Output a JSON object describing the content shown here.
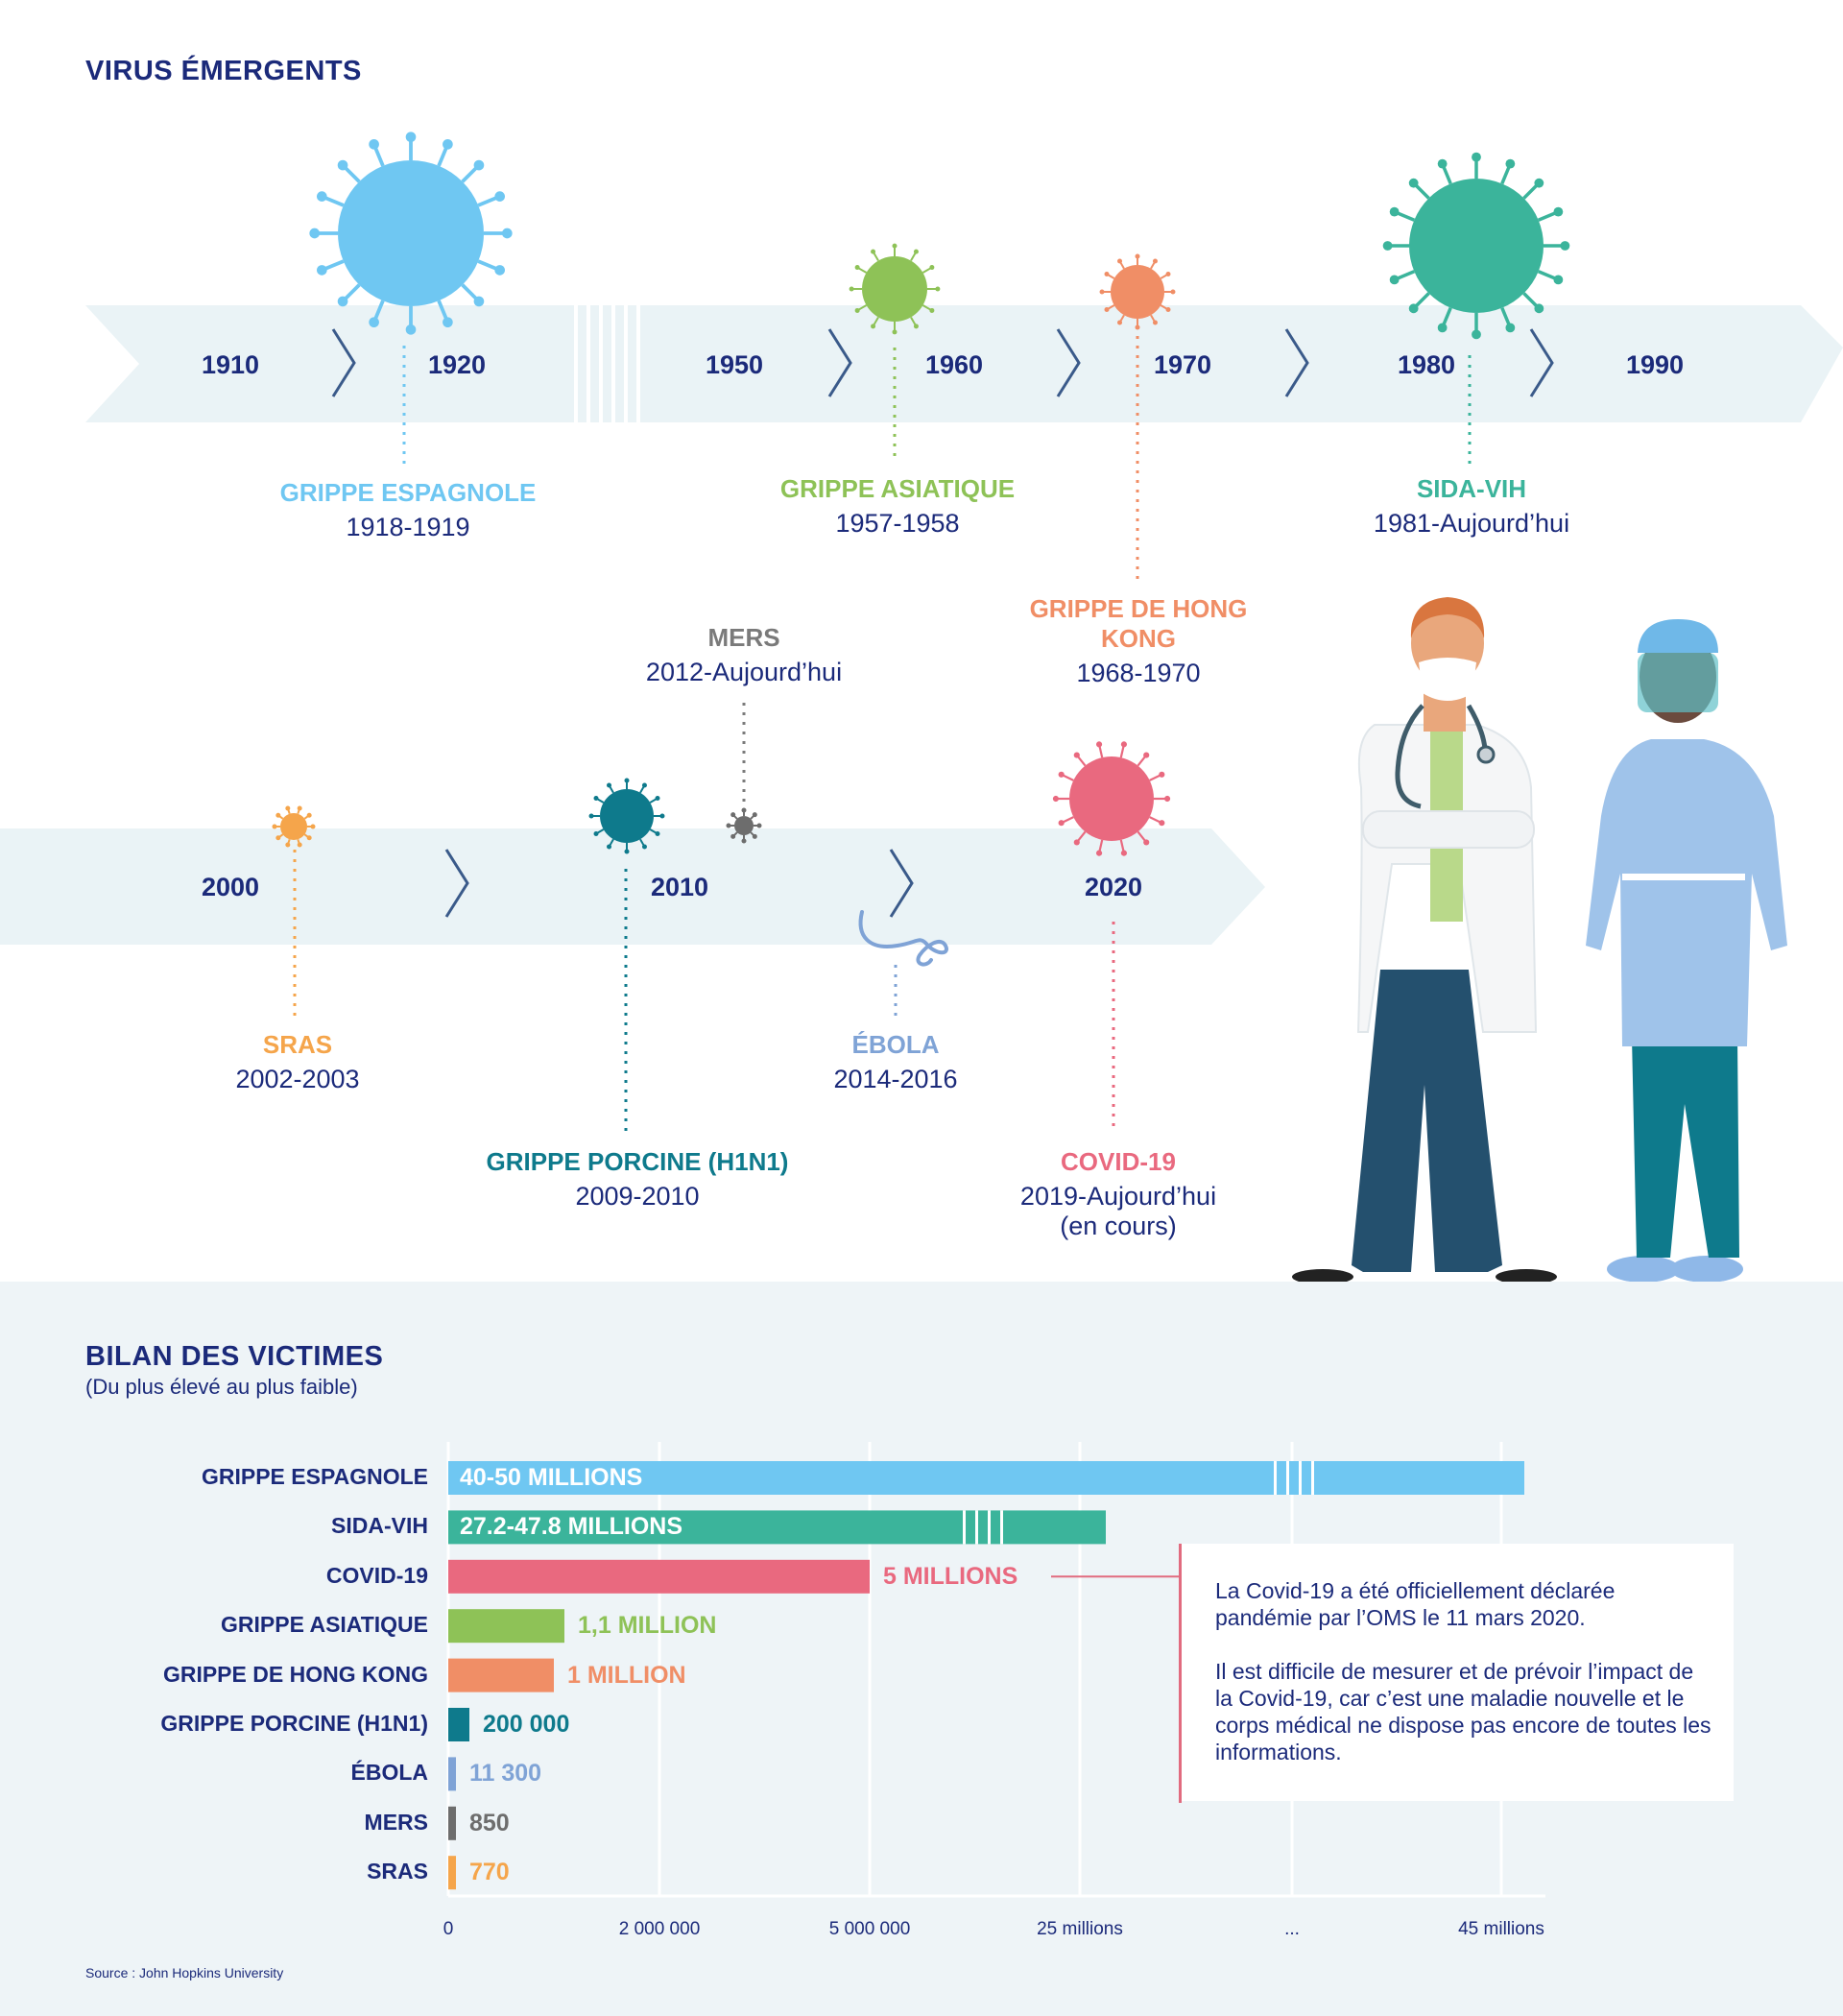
{
  "header": {
    "title": "VIRUS ÉMERGENTS"
  },
  "timeline_top": {
    "years": [
      "1910",
      "1920",
      "1950",
      "1960",
      "1970",
      "1980",
      "1990"
    ],
    "events": [
      {
        "name": "GRIPPE ESPAGNOLE",
        "dates": "1918-1919",
        "color": "#6fc7f2"
      },
      {
        "name": "GRIPPE ASIATIQUE",
        "dates": "1957-1958",
        "color": "#8ec257"
      },
      {
        "name": "GRIPPE DE HONG KONG",
        "dates": "1968-1970",
        "color": "#f08e66"
      },
      {
        "name": "SIDA-VIH",
        "dates": "1981-Aujourd’hui",
        "color": "#3bb49b"
      }
    ]
  },
  "timeline_bottom": {
    "years": [
      "2000",
      "2010",
      "2020"
    ],
    "events": [
      {
        "name": "SRAS",
        "dates": "2002-2003",
        "color": "#f5a54b"
      },
      {
        "name": "MERS",
        "dates": "2012-Aujourd’hui",
        "color": "#7a7a7a"
      },
      {
        "name": "GRIPPE PORCINE (H1N1)",
        "dates": "2009-2010",
        "color": "#0e7a8c"
      },
      {
        "name": "ÉBOLA",
        "dates": "2014-2016",
        "color": "#7fa3d6"
      },
      {
        "name": "COVID-19",
        "dates": "2019-Aujourd’hui",
        "dates2": "(en cours)",
        "color": "#e9697f"
      }
    ]
  },
  "victims": {
    "title": "BILAN DES VICTIMES",
    "subtitle": "(Du plus élevé au plus faible)",
    "note": {
      "p1": "La Covid-19 a été officiellement déclarée pandémie par l’OMS le 11 mars 2020.",
      "p2": "Il est difficile de mesurer et de prévoir l’impact de la Covid-19, car c’est une maladie nouvelle et le corps médical ne dispose pas encore de toutes les informations."
    },
    "source": "Source : John Hopkins University"
  },
  "chart_data": {
    "type": "bar",
    "orientation": "horizontal",
    "title": "BILAN DES VICTIMES",
    "subtitle": "(Du plus élevé au plus faible)",
    "scale": "broken",
    "x_ticks": [
      "0",
      "2 000 000",
      "5 000 000",
      "25 millions",
      "...",
      "45 millions"
    ],
    "categories": [
      "GRIPPE ESPAGNOLE",
      "SIDA-VIH",
      "COVID-19",
      "GRIPPE ASIATIQUE",
      "GRIPPE DE HONG KONG",
      "GRIPPE PORCINE (H1N1)",
      "ÉBOLA",
      "MERS",
      "SRAS"
    ],
    "values": [
      50000000,
      47800000,
      5000000,
      1100000,
      1000000,
      200000,
      11300,
      850,
      770
    ],
    "value_labels": [
      "40-50 MILLIONS",
      "27.2-47.8 MILLIONS",
      "5 MILLIONS",
      "1,1 MILLION",
      "1 MILLION",
      "200 000",
      "11 300",
      "850",
      "770"
    ],
    "colors": [
      "#6fc7f2",
      "#3bb49b",
      "#e9697f",
      "#8ec257",
      "#f08e66",
      "#0e7a8c",
      "#7fa3d6",
      "#6d6d6d",
      "#f5a54b"
    ],
    "label_colors": [
      "#ffffff",
      "#ffffff",
      "#e9697f",
      "#8ec257",
      "#f08e66",
      "#0e7a8c",
      "#7fa3d6",
      "#6d6d6d",
      "#f5a54b"
    ],
    "label_inside": [
      true,
      true,
      false,
      false,
      false,
      false,
      false,
      false,
      false
    ],
    "grid": true
  }
}
